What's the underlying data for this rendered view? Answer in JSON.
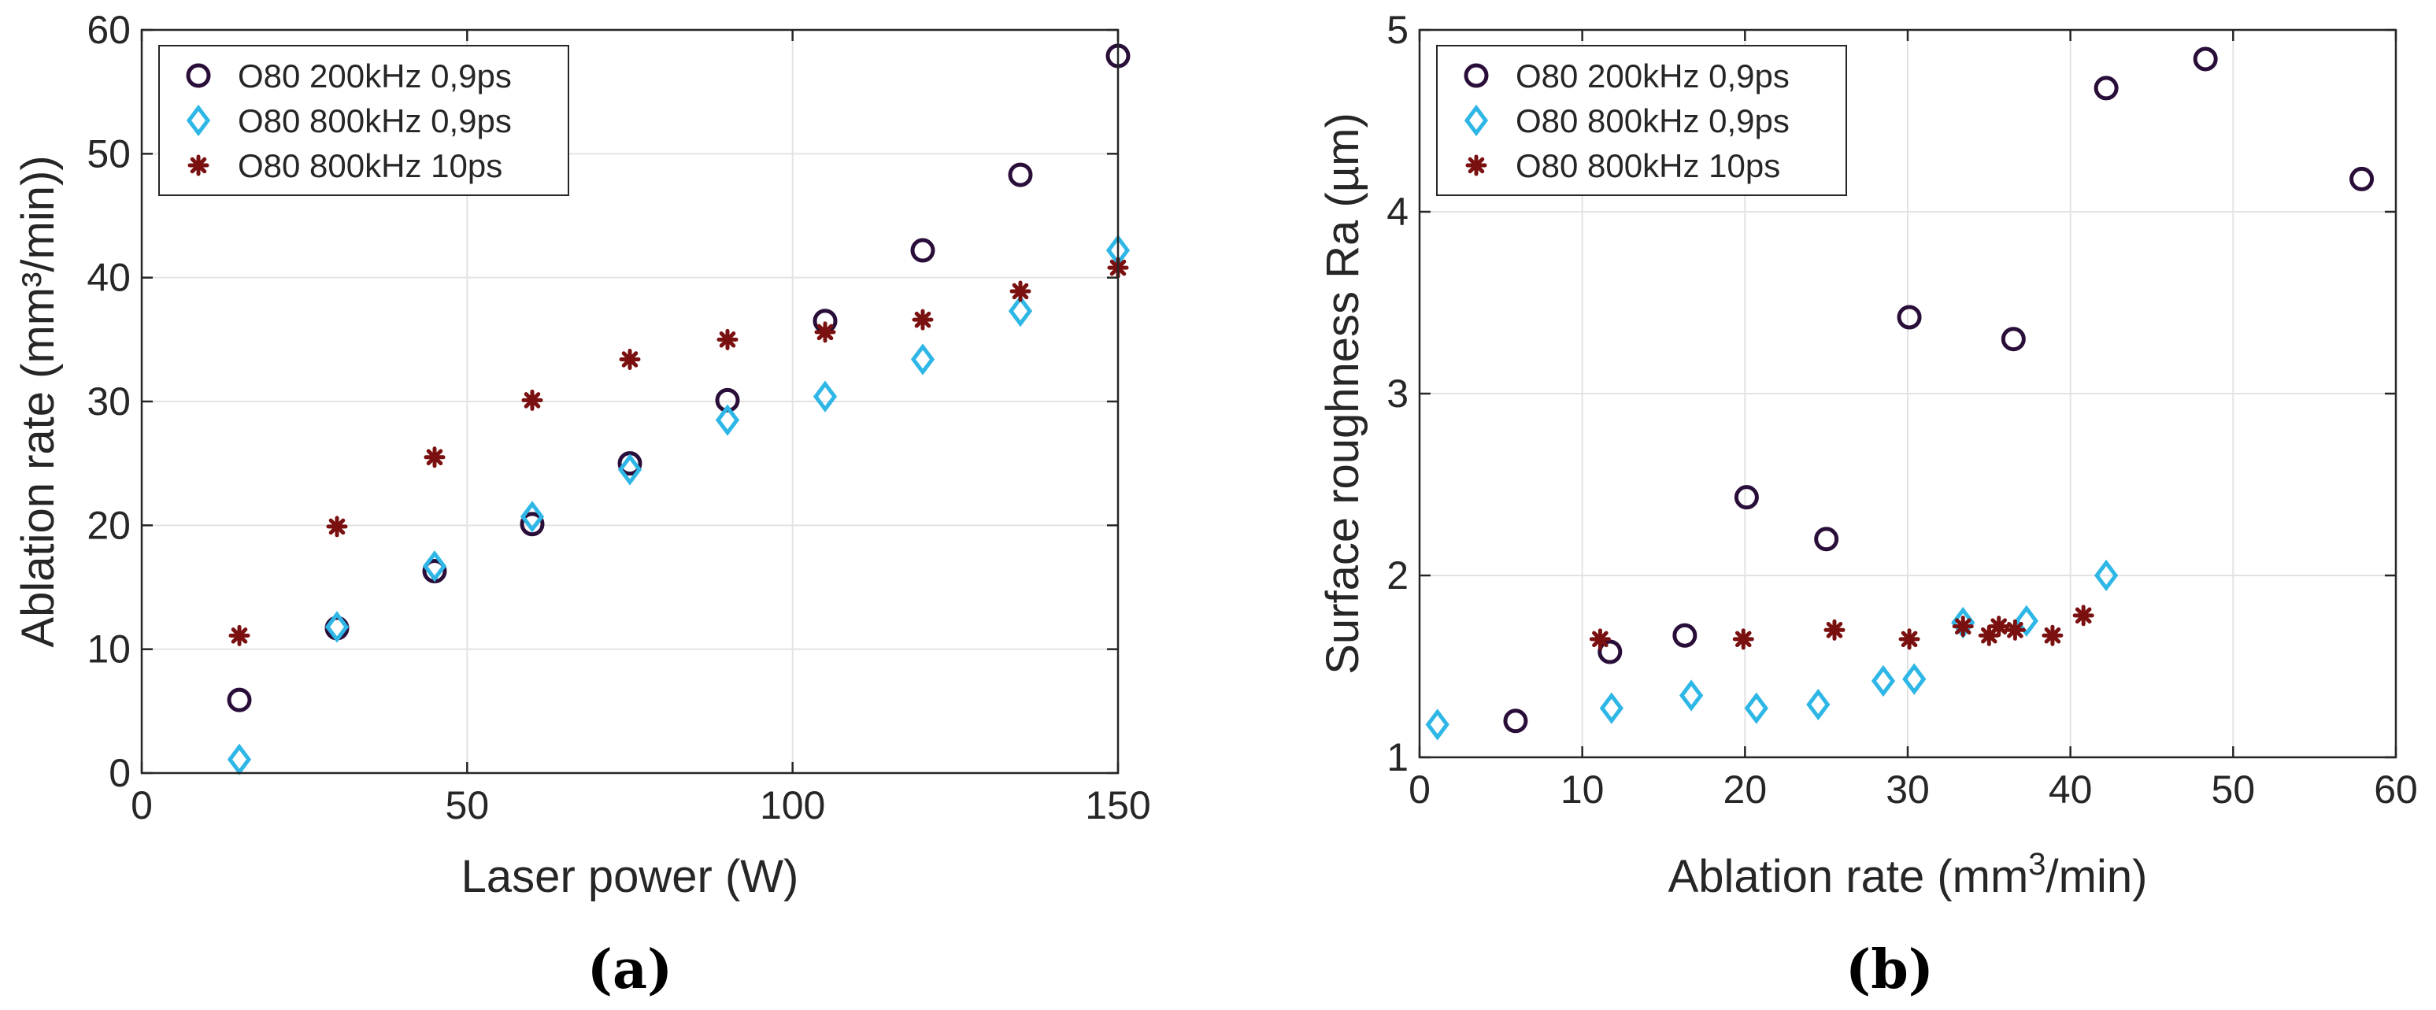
{
  "chart_data": [
    {
      "type": "scatter",
      "panel_label": "(a)",
      "xlabel": "Laser power (W)",
      "ylabel": "Ablation rate (mm³/min))",
      "xlim": [
        0,
        150
      ],
      "ylim": [
        0,
        60
      ],
      "xticks": [
        0,
        50,
        100,
        150
      ],
      "yticks": [
        0,
        10,
        20,
        30,
        40,
        50,
        60
      ],
      "grid": true,
      "legend_position": "top-left",
      "series": [
        {
          "name": "O80 200kHz 0,9ps",
          "marker": "circle",
          "color": "#2a0e3a",
          "x": [
            15,
            30,
            45,
            60,
            75,
            90,
            105,
            120,
            135,
            150
          ],
          "y": [
            5.9,
            11.7,
            16.3,
            20.1,
            25.0,
            30.1,
            36.5,
            42.2,
            48.3,
            57.9
          ]
        },
        {
          "name": "O80 800kHz 0,9ps",
          "marker": "diamond",
          "color": "#2eb7e6",
          "x": [
            15,
            30,
            45,
            60,
            75,
            90,
            105,
            120,
            135,
            150
          ],
          "y": [
            1.1,
            11.8,
            16.7,
            20.7,
            24.5,
            28.5,
            30.4,
            33.4,
            37.3,
            42.2
          ]
        },
        {
          "name": "O80 800kHz 10ps",
          "marker": "asterisk",
          "color": "#7a1010",
          "x": [
            15,
            30,
            45,
            60,
            75,
            90,
            105,
            120,
            135,
            150
          ],
          "y": [
            11.1,
            19.9,
            25.5,
            30.1,
            33.4,
            35.0,
            35.6,
            36.6,
            38.9,
            40.8
          ]
        }
      ]
    },
    {
      "type": "scatter",
      "panel_label": "(b)",
      "xlabel": "Ablation rate (mm",
      "xlabel_sup": "3",
      "xlabel_tail": "/min)",
      "ylabel": "Surface roughness Ra (µm)",
      "xlim": [
        0,
        60
      ],
      "ylim": [
        1,
        5
      ],
      "xticks": [
        0,
        10,
        20,
        30,
        40,
        50,
        60
      ],
      "yticks": [
        1,
        2,
        3,
        4,
        5
      ],
      "grid": true,
      "legend_position": "top-left",
      "series": [
        {
          "name": "O80 200kHz 0,9ps",
          "marker": "circle",
          "color": "#2a0e3a",
          "x": [
            5.9,
            11.7,
            16.3,
            20.1,
            25.0,
            30.1,
            36.5,
            42.2,
            48.3,
            57.9
          ],
          "y": [
            1.2,
            1.58,
            1.67,
            2.43,
            2.2,
            3.42,
            3.3,
            4.68,
            4.84,
            4.18
          ]
        },
        {
          "name": "O80 800kHz 0,9ps",
          "marker": "diamond",
          "color": "#2eb7e6",
          "x": [
            1.1,
            11.8,
            16.7,
            20.7,
            24.5,
            28.5,
            30.4,
            33.4,
            37.3,
            42.2
          ],
          "y": [
            1.18,
            1.27,
            1.34,
            1.27,
            1.29,
            1.42,
            1.43,
            1.74,
            1.75,
            2.0
          ]
        },
        {
          "name": "O80 800kHz 10ps",
          "marker": "asterisk",
          "color": "#7a1010",
          "x": [
            11.1,
            19.9,
            25.5,
            30.1,
            33.4,
            35.0,
            35.6,
            36.6,
            38.9,
            40.8
          ],
          "y": [
            1.65,
            1.65,
            1.7,
            1.65,
            1.72,
            1.67,
            1.72,
            1.7,
            1.67,
            1.78
          ]
        }
      ]
    }
  ]
}
